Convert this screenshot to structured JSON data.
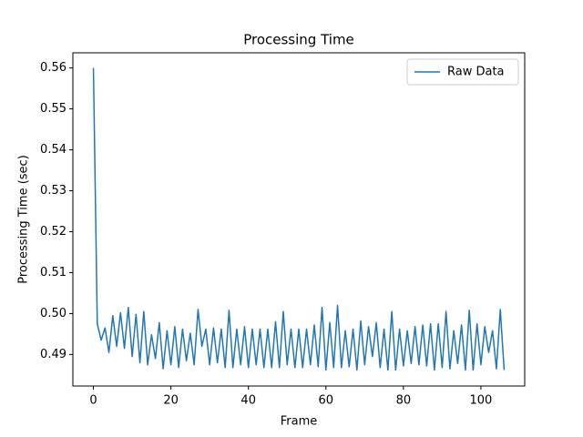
{
  "chart_data": {
    "type": "line",
    "title": "Processing Time",
    "xlabel": "Frame",
    "ylabel": "Processing Time (sec)",
    "x": [
      0,
      1,
      2,
      3,
      4,
      5,
      6,
      7,
      8,
      9,
      10,
      11,
      12,
      13,
      14,
      15,
      16,
      17,
      18,
      19,
      20,
      21,
      22,
      23,
      24,
      25,
      26,
      27,
      28,
      29,
      30,
      31,
      32,
      33,
      34,
      35,
      36,
      37,
      38,
      39,
      40,
      41,
      42,
      43,
      44,
      45,
      46,
      47,
      48,
      49,
      50,
      51,
      52,
      53,
      54,
      55,
      56,
      57,
      58,
      59,
      60,
      61,
      62,
      63,
      64,
      65,
      66,
      67,
      68,
      69,
      70,
      71,
      72,
      73,
      74,
      75,
      76,
      77,
      78,
      79,
      80,
      81,
      82,
      83,
      84,
      85,
      86,
      87,
      88,
      89,
      90,
      91,
      92,
      93,
      94,
      95,
      96,
      97,
      98,
      99,
      100,
      101,
      102,
      103,
      104,
      105,
      106
    ],
    "series": [
      {
        "name": "Raw Data",
        "color": "#1f77b4",
        "values": [
          0.56,
          0.4975,
          0.4935,
          0.4965,
          0.4905,
          0.4995,
          0.492,
          0.5002,
          0.4915,
          0.5015,
          0.4895,
          0.4998,
          0.488,
          0.5005,
          0.4875,
          0.4948,
          0.489,
          0.4978,
          0.4865,
          0.4958,
          0.4875,
          0.4968,
          0.4868,
          0.4962,
          0.4885,
          0.4952,
          0.4875,
          0.501,
          0.492,
          0.4962,
          0.4875,
          0.4965,
          0.488,
          0.4962,
          0.4868,
          0.5008,
          0.4868,
          0.4962,
          0.4875,
          0.4968,
          0.4868,
          0.4962,
          0.4875,
          0.4962,
          0.4868,
          0.4962,
          0.4868,
          0.498,
          0.4868,
          0.5005,
          0.4875,
          0.4962,
          0.4868,
          0.4962,
          0.4868,
          0.4962,
          0.4875,
          0.4972,
          0.487,
          0.5015,
          0.4862,
          0.4978,
          0.4868,
          0.502,
          0.4868,
          0.4958,
          0.487,
          0.4962,
          0.4862,
          0.4982,
          0.4875,
          0.4968,
          0.4895,
          0.4978,
          0.4868,
          0.4962,
          0.4862,
          0.5005,
          0.4862,
          0.4962,
          0.4872,
          0.4958,
          0.4878,
          0.4968,
          0.4875,
          0.4972,
          0.4872,
          0.4975,
          0.4862,
          0.4975,
          0.4868,
          0.5005,
          0.4865,
          0.4958,
          0.4878,
          0.4972,
          0.4862,
          0.5008,
          0.4862,
          0.4975,
          0.4875,
          0.4968,
          0.4905,
          0.4958,
          0.4865,
          0.501,
          0.4862
        ]
      }
    ],
    "xlim": [
      -5.3,
      111.3
    ],
    "ylim": [
      0.4823,
      0.5637
    ],
    "xticks": [
      0,
      20,
      40,
      60,
      80,
      100
    ],
    "yticks": [
      0.49,
      {
        "value": 0.5,
        "label": "0.50"
      },
      0.51,
      0.52,
      0.53,
      0.54,
      0.55,
      0.56
    ],
    "legend": "upper right"
  }
}
